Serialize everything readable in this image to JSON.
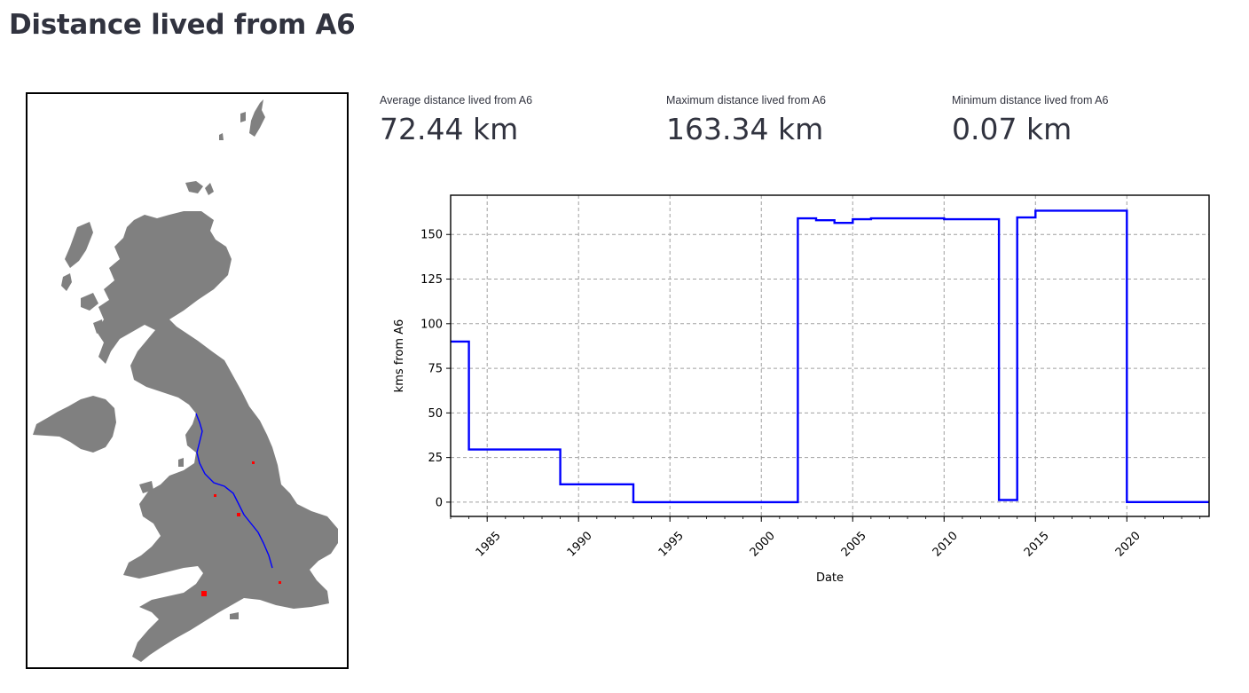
{
  "page": {
    "title": "Distance lived from A6"
  },
  "metrics": [
    {
      "label": "Average distance lived from A6",
      "value": "72.44 km"
    },
    {
      "label": "Maximum distance lived from A6",
      "value": "163.34 km"
    },
    {
      "label": "Minimum distance lived from A6",
      "value": "0.07 km"
    }
  ],
  "map": {
    "land_color": "#808080",
    "route_color": "#0000ff",
    "marker_color": "#ff0000"
  },
  "chart_data": {
    "type": "line",
    "step": true,
    "xlabel": "Date",
    "ylabel": "kms from A6",
    "xlim": [
      1983,
      2024.5
    ],
    "ylim": [
      -8,
      172
    ],
    "xticks": [
      1985,
      1990,
      1995,
      2000,
      2005,
      2010,
      2015,
      2020
    ],
    "yticks": [
      0,
      25,
      50,
      75,
      100,
      125,
      150
    ],
    "grid": true,
    "line_color": "#0000ff",
    "x": [
      1983,
      1984,
      1984,
      1989,
      1989,
      1993,
      1993,
      2002,
      2002,
      2003,
      2003,
      2004,
      2004,
      2005,
      2005,
      2006,
      2006,
      2010,
      2010,
      2013,
      2013,
      2014,
      2014,
      2015,
      2015,
      2020,
      2020,
      2024.5
    ],
    "y": [
      90,
      90,
      29.5,
      29.5,
      10,
      10,
      0,
      0,
      159,
      159,
      158,
      158,
      156.5,
      156.5,
      158.5,
      158.5,
      159,
      159,
      158.5,
      158.5,
      1.2,
      1.2,
      159.5,
      159.5,
      163.34,
      163.34,
      0.07,
      0.07
    ]
  }
}
